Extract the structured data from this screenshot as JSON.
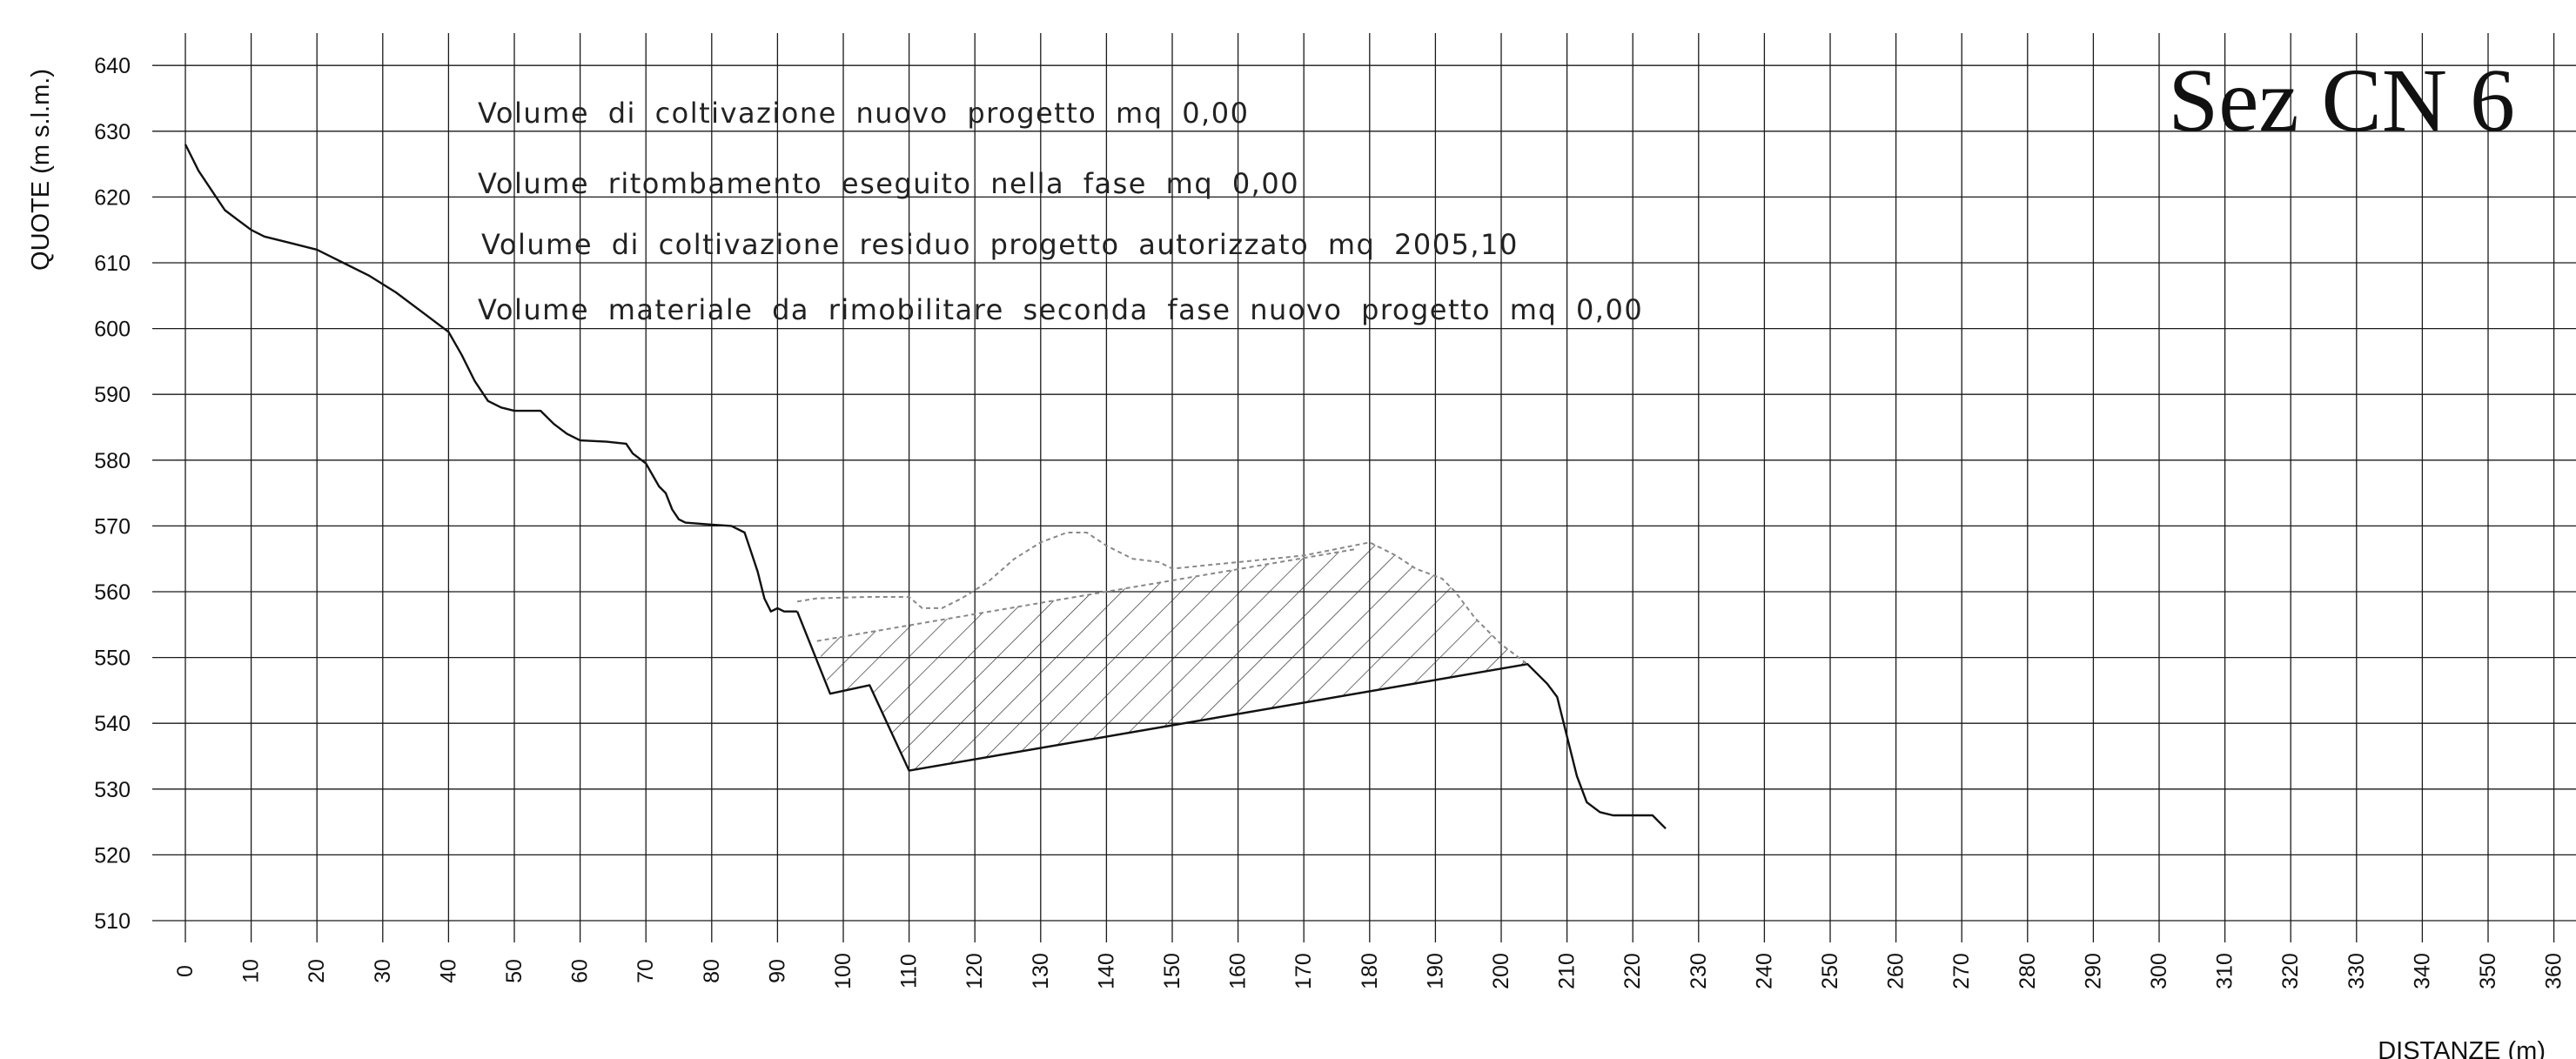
{
  "chart_data": {
    "type": "line",
    "title": "Sez CN 6",
    "xlabel": "DISTANZE (m)",
    "ylabel": "QUOTE (m s.l.m.)",
    "xlim": [
      0,
      360
    ],
    "ylim": [
      510,
      640
    ],
    "x_ticks": [
      0,
      10,
      20,
      30,
      40,
      50,
      60,
      70,
      80,
      90,
      100,
      110,
      120,
      130,
      140,
      150,
      160,
      170,
      180,
      190,
      200,
      210,
      220,
      230,
      240,
      250,
      260,
      270,
      280,
      290,
      300,
      310,
      320,
      330,
      340,
      350,
      360
    ],
    "y_ticks": [
      510,
      520,
      530,
      540,
      550,
      560,
      570,
      580,
      590,
      600,
      610,
      620,
      630,
      640
    ],
    "grid": true,
    "annotations": [
      "Volume di coltivazione nuovo progetto mq 0,00",
      "Volume ritombamento eseguito nella fase mq 0,00",
      "Volume di coltivazione residuo progetto autorizzato mq 2005,10",
      "Volume materiale da rimobilitare seconda fase nuovo progetto mq 0,00"
    ],
    "series": [
      {
        "style": "solid",
        "points": [
          [
            0,
            628
          ],
          [
            2,
            624
          ],
          [
            4,
            621
          ],
          [
            6,
            618
          ],
          [
            8,
            616.5
          ],
          [
            10,
            615
          ],
          [
            12,
            614
          ],
          [
            16,
            613
          ],
          [
            20,
            612
          ],
          [
            24,
            610
          ],
          [
            28,
            608
          ],
          [
            32,
            605.5
          ],
          [
            36,
            602.5
          ],
          [
            40,
            599.5
          ],
          [
            42,
            596
          ],
          [
            44,
            592
          ],
          [
            46,
            589
          ],
          [
            48,
            588
          ],
          [
            50,
            587.5
          ],
          [
            54,
            587.5
          ],
          [
            56,
            585.5
          ],
          [
            58,
            584
          ],
          [
            60,
            583
          ],
          [
            64,
            582.8
          ],
          [
            67,
            582.5
          ],
          [
            68,
            581
          ],
          [
            70,
            579.5
          ],
          [
            72,
            576
          ],
          [
            73,
            575
          ],
          [
            74,
            572.5
          ],
          [
            75,
            571
          ],
          [
            76,
            570.5
          ],
          [
            80,
            570.2
          ],
          [
            83,
            570
          ],
          [
            85,
            569
          ],
          [
            86,
            566
          ],
          [
            87,
            563
          ],
          [
            88,
            559
          ],
          [
            89,
            557
          ],
          [
            90,
            557.5
          ],
          [
            91,
            557
          ],
          [
            93,
            557
          ]
        ]
      },
      {
        "style": "solid",
        "points": [
          [
            93,
            557
          ],
          [
            98,
            544.5
          ],
          [
            104,
            545.8
          ],
          [
            110,
            532.8
          ],
          [
            204,
            549
          ],
          [
            207,
            546
          ],
          [
            208.5,
            544
          ],
          [
            210,
            538
          ],
          [
            211.5,
            532
          ],
          [
            213,
            528
          ],
          [
            215,
            526.5
          ],
          [
            217,
            526
          ],
          [
            223,
            526
          ],
          [
            225,
            524
          ]
        ]
      },
      {
        "style": "dashed",
        "points": [
          [
            93,
            558.5
          ],
          [
            96,
            559
          ],
          [
            104,
            559.2
          ],
          [
            110,
            559.2
          ],
          [
            112,
            557.5
          ],
          [
            115,
            557.5
          ],
          [
            118,
            559
          ],
          [
            122,
            561.5
          ],
          [
            126,
            565
          ],
          [
            130,
            567.5
          ],
          [
            134,
            569
          ],
          [
            137,
            569
          ],
          [
            140,
            567
          ],
          [
            144,
            565
          ],
          [
            148,
            564.5
          ],
          [
            150,
            563.5
          ],
          [
            160,
            564.5
          ],
          [
            170,
            565.5
          ],
          [
            180,
            567.5
          ],
          [
            184,
            565.5
          ],
          [
            187,
            563.5
          ],
          [
            191,
            562
          ],
          [
            193,
            560
          ],
          [
            196,
            556
          ],
          [
            200,
            552
          ],
          [
            204,
            549
          ]
        ]
      },
      {
        "style": "dashed",
        "points": [
          [
            96,
            552.5
          ],
          [
            178,
            566.5
          ]
        ]
      }
    ],
    "hatched_area": [
      [
        96,
        552.5
      ],
      [
        178,
        566.5
      ],
      [
        180,
        567.5
      ],
      [
        184,
        565.5
      ],
      [
        187,
        563.5
      ],
      [
        191,
        562
      ],
      [
        193,
        560
      ],
      [
        196,
        556
      ],
      [
        200,
        552
      ],
      [
        204,
        549
      ],
      [
        110,
        532.8
      ],
      [
        104,
        545.8
      ],
      [
        98,
        544.5
      ]
    ]
  }
}
